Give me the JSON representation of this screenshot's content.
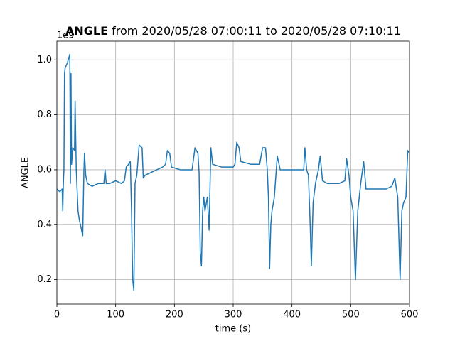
{
  "chart_data": {
    "type": "line",
    "title_bold": "ANGLE",
    "title": "from 2020/05/28 07:00:11 to 2020/05/28 07:10:11",
    "xlabel": "time (s)",
    "ylabel": "ANGLE",
    "y_offset_label": "1e9",
    "xlim": [
      0,
      600
    ],
    "xticks": [
      0,
      100,
      200,
      300,
      400,
      500,
      600
    ],
    "ylim": [
      0.111,
      1.068
    ],
    "yticks": [
      0.2,
      0.4,
      0.6,
      0.8,
      {
        "value": 1,
        "label": "1.0"
      }
    ],
    "grid": true,
    "series": [
      {
        "name": "ANGLE",
        "color": "#1f77b4",
        "x": [
          0,
          5,
          9,
          10,
          11,
          12,
          13,
          14,
          18,
          22,
          23,
          24,
          25,
          27,
          30,
          31,
          33,
          36,
          38,
          40,
          44,
          46,
          47,
          49,
          52,
          60,
          70,
          80,
          82,
          84,
          90,
          100,
          110,
          115,
          118,
          122,
          125,
          127,
          129,
          131,
          133,
          136,
          140,
          145,
          147,
          150,
          160,
          170,
          180,
          185,
          188,
          192,
          195,
          210,
          230,
          235,
          240,
          242,
          244,
          246,
          248,
          250,
          252,
          256,
          259,
          262,
          265,
          280,
          300,
          303,
          306,
          310,
          313,
          330,
          345,
          350,
          355,
          358,
          360,
          362,
          364,
          366,
          370,
          375,
          380,
          400,
          420,
          422,
          425,
          428,
          431,
          433,
          436,
          440,
          445,
          448,
          452,
          460,
          480,
          490,
          493,
          497,
          500,
          504,
          508,
          512,
          517,
          522,
          526,
          540,
          560,
          570,
          575,
          580,
          584,
          587,
          590,
          594,
          597,
          600
        ],
        "values": [
          0.53,
          0.52,
          0.53,
          0.45,
          0.55,
          0.6,
          0.95,
          0.97,
          0.99,
          1.02,
          0.55,
          0.95,
          0.62,
          0.68,
          0.67,
          0.85,
          0.6,
          0.45,
          0.42,
          0.4,
          0.36,
          0.6,
          0.66,
          0.58,
          0.55,
          0.54,
          0.55,
          0.55,
          0.6,
          0.55,
          0.55,
          0.56,
          0.55,
          0.56,
          0.61,
          0.62,
          0.63,
          0.45,
          0.2,
          0.16,
          0.55,
          0.58,
          0.69,
          0.68,
          0.57,
          0.58,
          0.59,
          0.6,
          0.61,
          0.62,
          0.67,
          0.66,
          0.61,
          0.6,
          0.6,
          0.68,
          0.66,
          0.59,
          0.3,
          0.25,
          0.45,
          0.5,
          0.45,
          0.5,
          0.38,
          0.68,
          0.62,
          0.61,
          0.61,
          0.62,
          0.7,
          0.68,
          0.63,
          0.62,
          0.62,
          0.68,
          0.68,
          0.6,
          0.5,
          0.24,
          0.4,
          0.45,
          0.5,
          0.65,
          0.6,
          0.6,
          0.6,
          0.68,
          0.6,
          0.58,
          0.4,
          0.25,
          0.48,
          0.55,
          0.6,
          0.65,
          0.56,
          0.55,
          0.55,
          0.56,
          0.64,
          0.58,
          0.5,
          0.45,
          0.2,
          0.45,
          0.55,
          0.63,
          0.53,
          0.53,
          0.53,
          0.54,
          0.57,
          0.5,
          0.2,
          0.45,
          0.48,
          0.5,
          0.67,
          0.66
        ]
      }
    ]
  }
}
